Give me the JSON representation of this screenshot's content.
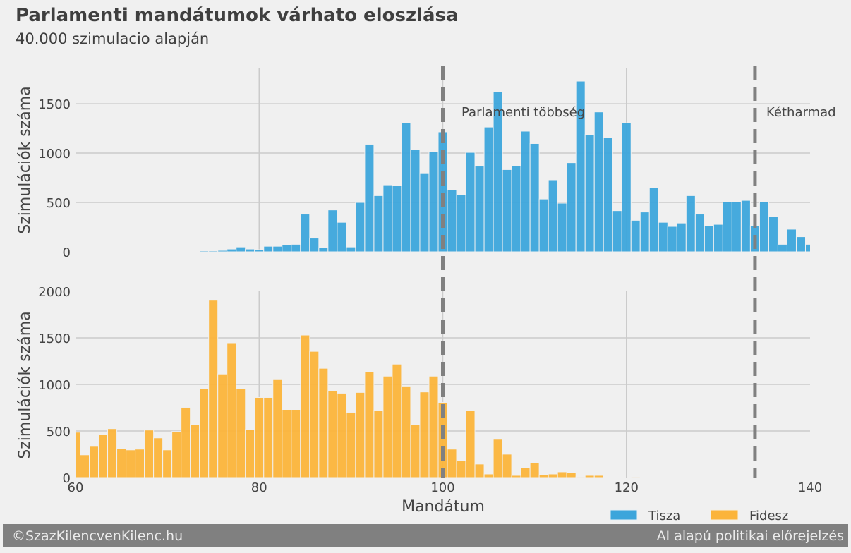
{
  "title": "Parlamenti mandátumok várhato eloszlása",
  "subtitle": "40.000 szimulacio alapján",
  "footer": {
    "left": "©SzazKilencvenKilenc.hu",
    "right": "AI alapú politikai előrejelzés"
  },
  "colors": {
    "Tisza": "#3ca5db",
    "Fidesz": "#fbb43a",
    "reference_lines": "#808080",
    "background": "#f0f0f0"
  },
  "chart_data": [
    {
      "type": "bar",
      "subtype": "histogram",
      "series": [
        {
          "name": "Tisza",
          "x_start": 74,
          "values": [
            10,
            10,
            14,
            28,
            49,
            28,
            21,
            56,
            56,
            69,
            76,
            382,
            139,
            42,
            424,
            299,
            49,
            500,
            1090,
            569,
            678,
            671,
            1306,
            1035,
            799,
            1014,
            1215,
            632,
            576,
            1007,
            868,
            1264,
            1625,
            833,
            875,
            1222,
            1097,
            535,
            729,
            493,
            903,
            1729,
            1188,
            1417,
            1160,
            417,
            1306,
            319,
            403,
            653,
            299,
            257,
            292,
            569,
            382,
            264,
            278,
            507,
            507,
            521,
            264,
            507,
            354,
            76,
            229,
            153,
            76
          ]
        }
      ],
      "xlabel": "",
      "ylabel": "Szimulációk száma",
      "xlim": [
        60,
        140
      ],
      "ylim": [
        0,
        1865
      ],
      "xticks": [
        "60",
        "80",
        "100",
        "120",
        "140"
      ],
      "yticks": [
        "0",
        "500",
        "1000",
        "1500"
      ],
      "grid": true,
      "reference_lines": [
        {
          "x": 100,
          "label": "Parlamenti többség"
        },
        {
          "x": 134,
          "label": "Kétharmad"
        }
      ]
    },
    {
      "type": "bar",
      "subtype": "histogram",
      "series": [
        {
          "name": "Fidesz",
          "x_start": 60,
          "values": [
            487,
            244,
            335,
            464,
            525,
            312,
            297,
            305,
            510,
            426,
            297,
            495,
            754,
            571,
            952,
            1904,
            1112,
            1447,
            952,
            518,
            860,
            860,
            1051,
            731,
            731,
            1530,
            1355,
            1173,
            929,
            906,
            701,
            914,
            1135,
            723,
            1089,
            1218,
            982,
            571,
            919,
            1089,
            807,
            305,
            183,
            723,
            145,
            38,
            411,
            251,
            23,
            107,
            160,
            30,
            38,
            61,
            53,
            8,
            23,
            23,
            2,
            2,
            0,
            8
          ]
        }
      ],
      "xlabel": "Mandátum",
      "ylabel": "Szimulációk száma",
      "xlim": [
        60,
        140
      ],
      "ylim": [
        0,
        2000
      ],
      "xticks": [
        "60",
        "80",
        "100",
        "120",
        "140"
      ],
      "yticks": [
        "0",
        "500",
        "1000",
        "1500",
        "2000"
      ],
      "grid": true,
      "reference_lines": [
        {
          "x": 100
        },
        {
          "x": 134
        }
      ]
    }
  ],
  "legend": {
    "placement": "bottom-right",
    "items": [
      "Tisza",
      "Fidesz"
    ]
  }
}
